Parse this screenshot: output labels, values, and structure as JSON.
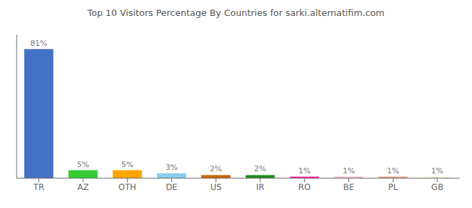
{
  "chart_data": {
    "type": "bar",
    "title": "Top 10 Visitors Percentage By Countries for sarki.alternatifim.com",
    "categories": [
      "TR",
      "AZ",
      "OTH",
      "DE",
      "US",
      "IR",
      "RO",
      "BE",
      "PL",
      "GB"
    ],
    "values": [
      81,
      5,
      5,
      3,
      2,
      2,
      1,
      1,
      1,
      1
    ],
    "value_labels": [
      "81%",
      "5%",
      "5%",
      "3%",
      "2%",
      "2%",
      "1%",
      "1%",
      "1%",
      "1%"
    ],
    "colors": [
      "#4472C4",
      "#33CC33",
      "#FFA500",
      "#88CCEE",
      "#CC6600",
      "#228B22",
      "#FF1493",
      "#FFB6C1",
      "#E8967A",
      "#F5F5DC"
    ],
    "ylim": [
      0,
      90
    ],
    "grid": false,
    "data_labels": true,
    "tick_labels": "x"
  }
}
